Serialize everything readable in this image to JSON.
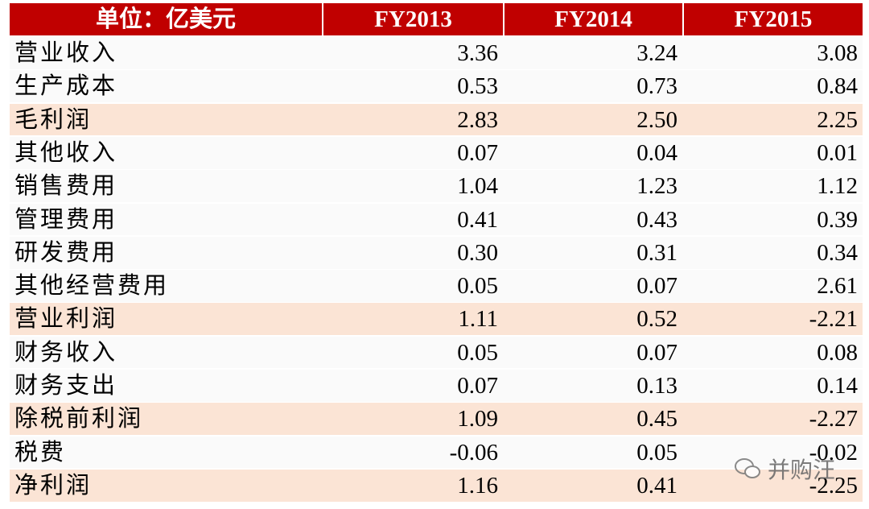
{
  "table": {
    "header": [
      "单位：亿美元",
      "FY2013",
      "FY2014",
      "FY2015"
    ],
    "rows": [
      [
        "营业收入",
        "3.36",
        "3.24",
        "3.08"
      ],
      [
        "生产成本",
        "0.53",
        "0.73",
        "0.84"
      ],
      [
        "毛利润",
        "2.83",
        "2.50",
        "2.25"
      ],
      [
        "其他收入",
        "0.07",
        "0.04",
        "0.01"
      ],
      [
        "销售费用",
        "1.04",
        "1.23",
        "1.12"
      ],
      [
        "管理费用",
        "0.41",
        "0.43",
        "0.39"
      ],
      [
        "研发费用",
        "0.30",
        "0.31",
        "0.34"
      ],
      [
        "其他经营费用",
        "0.05",
        "0.07",
        "2.61"
      ],
      [
        "营业利润",
        "1.11",
        "0.52",
        "-2.21"
      ],
      [
        "财务收入",
        "0.05",
        "0.07",
        "0.08"
      ],
      [
        "财务支出",
        "0.07",
        "0.13",
        "0.14"
      ],
      [
        "除税前利润",
        "1.09",
        "0.45",
        "-2.27"
      ],
      [
        "税费",
        "-0.06",
        "0.05",
        "-0.02"
      ],
      [
        "净利润",
        "1.16",
        "0.41",
        "-2.25"
      ]
    ],
    "highlight_rows": [
      2,
      8,
      11,
      13
    ],
    "header_color": "#c00000",
    "highlight_color": "#fbe4d5"
  },
  "watermark": "并购汪"
}
